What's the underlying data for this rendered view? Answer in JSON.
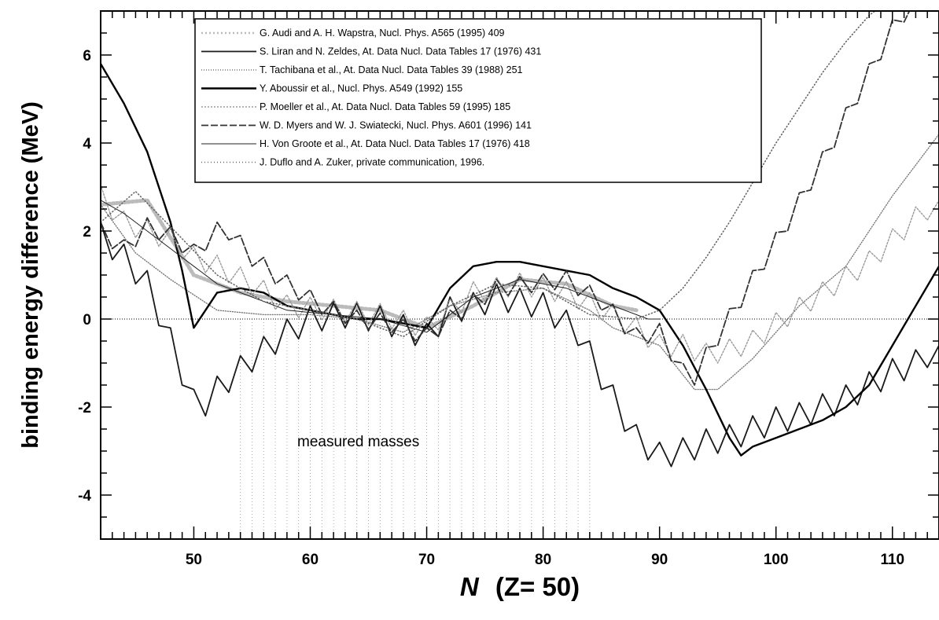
{
  "chart_data": {
    "type": "line",
    "ylabel": "binding energy difference (MeV)",
    "xlabel_var": "N",
    "xlabel_rest": "(Z= 50)",
    "xlim": [
      42,
      114
    ],
    "ylim": [
      -5,
      7
    ],
    "xticks": [
      50,
      60,
      70,
      80,
      90,
      100,
      110
    ],
    "yticks": [
      -4,
      -2,
      0,
      2,
      4,
      6
    ],
    "grid": false,
    "legend_position": "top-center",
    "annotation": "measured masses",
    "measured_range": [
      54,
      84
    ],
    "zero_line": true,
    "legend": [
      "G. Audi and A. H. Wapstra, Nucl. Phys. A565 (1995) 409",
      "S. Liran and N. Zeldes, At. Data Nucl. Data Tables 17 (1976) 431",
      "T. Tachibana et al., At. Data Nucl. Data Tables 39 (1988) 251",
      "Y. Aboussir et al., Nucl. Phys. A549 (1992) 155",
      "P. Moeller et al., At. Data Nucl. Data Tables 59 (1995) 185",
      "W. D. Myers and W. J. Swiatecki, Nucl. Phys. A601 (1996) 141",
      "H. Von Groote et al., At. Data Nucl. Data Tables 17 (1976) 418",
      "J. Duflo and A. Zuker, private communication, 1996."
    ],
    "series": [
      {
        "name": "G. Audi and A. H. Wapstra, Nucl. Phys. A565 (1995) 409",
        "color": "#bbbbbb",
        "dash": "2,3",
        "width": 5,
        "x": [
          42,
          46,
          50,
          54,
          58,
          62,
          66,
          70,
          74,
          78,
          82,
          86,
          88
        ],
        "y": [
          2.6,
          2.7,
          1.0,
          0.6,
          0.4,
          0.3,
          0.2,
          -0.2,
          0.3,
          0.9,
          0.8,
          0.3,
          0.2
        ]
      },
      {
        "name": "S. Liran and N. Zeldes, At. Data Nucl. Data Tables 17 (1976) 431",
        "color": "#1a1a1a",
        "dash": "",
        "width": 1.8,
        "zigzag": 0.3,
        "x": [
          42,
          44,
          46,
          48,
          50,
          51,
          52,
          55,
          58,
          60,
          63,
          66,
          70,
          72,
          74,
          76,
          80,
          83,
          86,
          88,
          90,
          92,
          94,
          96,
          98,
          100,
          102,
          104,
          106,
          108,
          110,
          112,
          114
        ],
        "y": [
          1.9,
          1.4,
          0.8,
          -0.5,
          -1.9,
          -1.9,
          -1.6,
          -0.9,
          -0.3,
          0.0,
          0.1,
          0.0,
          -0.4,
          0.2,
          0.3,
          0.5,
          0.3,
          -0.3,
          -1.8,
          -2.7,
          -3.1,
          -3.0,
          -2.8,
          -2.7,
          -2.5,
          -2.3,
          -2.2,
          -2.0,
          -1.8,
          -1.5,
          -1.2,
          -1.0,
          -0.6
        ]
      },
      {
        "name": "T. Tachibana et al., At. Data Nucl. Data Tables 39 (1988) 251",
        "color": "#777777",
        "dash": "1,2",
        "width": 1.4,
        "x": [
          42,
          45,
          48,
          52,
          56,
          60,
          64,
          68,
          72,
          76,
          80,
          84,
          86,
          88,
          90,
          93,
          95,
          98,
          102,
          106,
          110,
          114
        ],
        "y": [
          2.6,
          1.5,
          0.9,
          0.2,
          0.1,
          0.1,
          0.0,
          -0.3,
          0.3,
          0.6,
          0.7,
          0.2,
          -0.2,
          -0.4,
          -0.6,
          -1.6,
          -1.6,
          -0.9,
          0.3,
          1.2,
          2.8,
          4.2
        ]
      },
      {
        "name": "Y. Aboussir et al., Nucl. Phys. A549 (1992) 155",
        "color": "#000000",
        "dash": "",
        "width": 2.4,
        "x": [
          42,
          44,
          46,
          48,
          49,
          50,
          51,
          52,
          54,
          56,
          58,
          60,
          62,
          64,
          66,
          68,
          70,
          72,
          74,
          76,
          78,
          80,
          82,
          84,
          86,
          88,
          90,
          92,
          94,
          96,
          97,
          98,
          100,
          102,
          104,
          106,
          108,
          110,
          112,
          114
        ],
        "y": [
          5.8,
          4.9,
          3.8,
          2.2,
          1.1,
          -0.2,
          0.2,
          0.6,
          0.7,
          0.6,
          0.3,
          0.2,
          0.1,
          0.0,
          0.0,
          -0.1,
          -0.2,
          0.7,
          1.2,
          1.3,
          1.3,
          1.2,
          1.1,
          1.0,
          0.7,
          0.5,
          0.2,
          -0.6,
          -1.6,
          -2.7,
          -3.1,
          -2.9,
          -2.7,
          -2.5,
          -2.3,
          -2.0,
          -1.5,
          -0.6,
          0.3,
          1.2
        ]
      },
      {
        "name": "P. Moeller et al., At. Data Nucl. Data Tables 59 (1995) 185",
        "color": "#999999",
        "dash": "2,2",
        "width": 1.4,
        "zigzag": 0.25,
        "x": [
          42,
          44,
          46,
          48,
          50,
          52,
          55,
          58,
          62,
          66,
          70,
          74,
          78,
          82,
          86,
          88,
          90,
          92,
          94,
          96,
          98,
          100,
          104,
          108,
          112,
          114
        ],
        "y": [
          2.8,
          2.2,
          2.0,
          1.8,
          1.4,
          1.2,
          0.8,
          0.3,
          0.2,
          0.1,
          -0.2,
          0.6,
          0.8,
          0.6,
          0.1,
          -0.2,
          -0.6,
          -0.6,
          -0.8,
          -0.7,
          -0.5,
          -0.1,
          0.6,
          1.3,
          2.3,
          2.7
        ]
      },
      {
        "name": "W. D. Myers and W. J. Swiatecki, Nucl. Phys. A601 (1996) 141",
        "color": "#333333",
        "dash": "9,3",
        "width": 1.8,
        "zigzag": 0.2,
        "x": [
          42,
          44,
          46,
          48,
          50,
          52,
          53,
          55,
          58,
          61,
          64,
          67,
          70,
          73,
          76,
          79,
          82,
          85,
          88,
          90,
          92,
          93,
          95,
          98,
          101,
          104,
          107,
          110,
          112
        ],
        "y": [
          2.0,
          1.6,
          2.1,
          1.9,
          1.5,
          2.0,
          2.0,
          1.4,
          0.8,
          0.3,
          0.0,
          -0.1,
          -0.4,
          0.2,
          0.7,
          0.8,
          0.9,
          0.4,
          -0.4,
          -0.3,
          -1.2,
          -1.3,
          -0.4,
          0.9,
          2.2,
          3.6,
          5.1,
          6.6,
          7.3
        ]
      },
      {
        "name": "H. Von Groote et al., At. Data Nucl. Data Tables 17 (1976) 418",
        "color": "#222222",
        "dash": "",
        "width": 1.0,
        "x": [
          42,
          44,
          46,
          48,
          50,
          52,
          55,
          58,
          62,
          66,
          70,
          74,
          78,
          82,
          86,
          88,
          89,
          90
        ],
        "y": [
          2.7,
          2.4,
          2.0,
          1.6,
          1.2,
          0.8,
          0.5,
          0.2,
          0.1,
          0.0,
          -0.3,
          0.5,
          0.9,
          0.7,
          0.3,
          0.1,
          0.0,
          0.0
        ]
      },
      {
        "name": "J. Duflo and A. Zuker, private communication, 1996.",
        "color": "#666666",
        "dash": "1,3",
        "width": 1.6,
        "x": [
          42,
          45,
          48,
          52,
          56,
          60,
          64,
          68,
          72,
          76,
          80,
          84,
          88,
          90,
          92,
          94,
          96,
          98,
          100,
          102,
          104,
          106,
          108,
          110
        ],
        "y": [
          2.2,
          2.9,
          2.1,
          1.0,
          0.4,
          0.2,
          0.0,
          -0.4,
          0.3,
          0.8,
          0.7,
          0.1,
          0.0,
          0.2,
          0.7,
          1.4,
          2.2,
          3.1,
          4.0,
          4.8,
          5.6,
          6.3,
          6.9,
          7.3
        ]
      }
    ]
  }
}
